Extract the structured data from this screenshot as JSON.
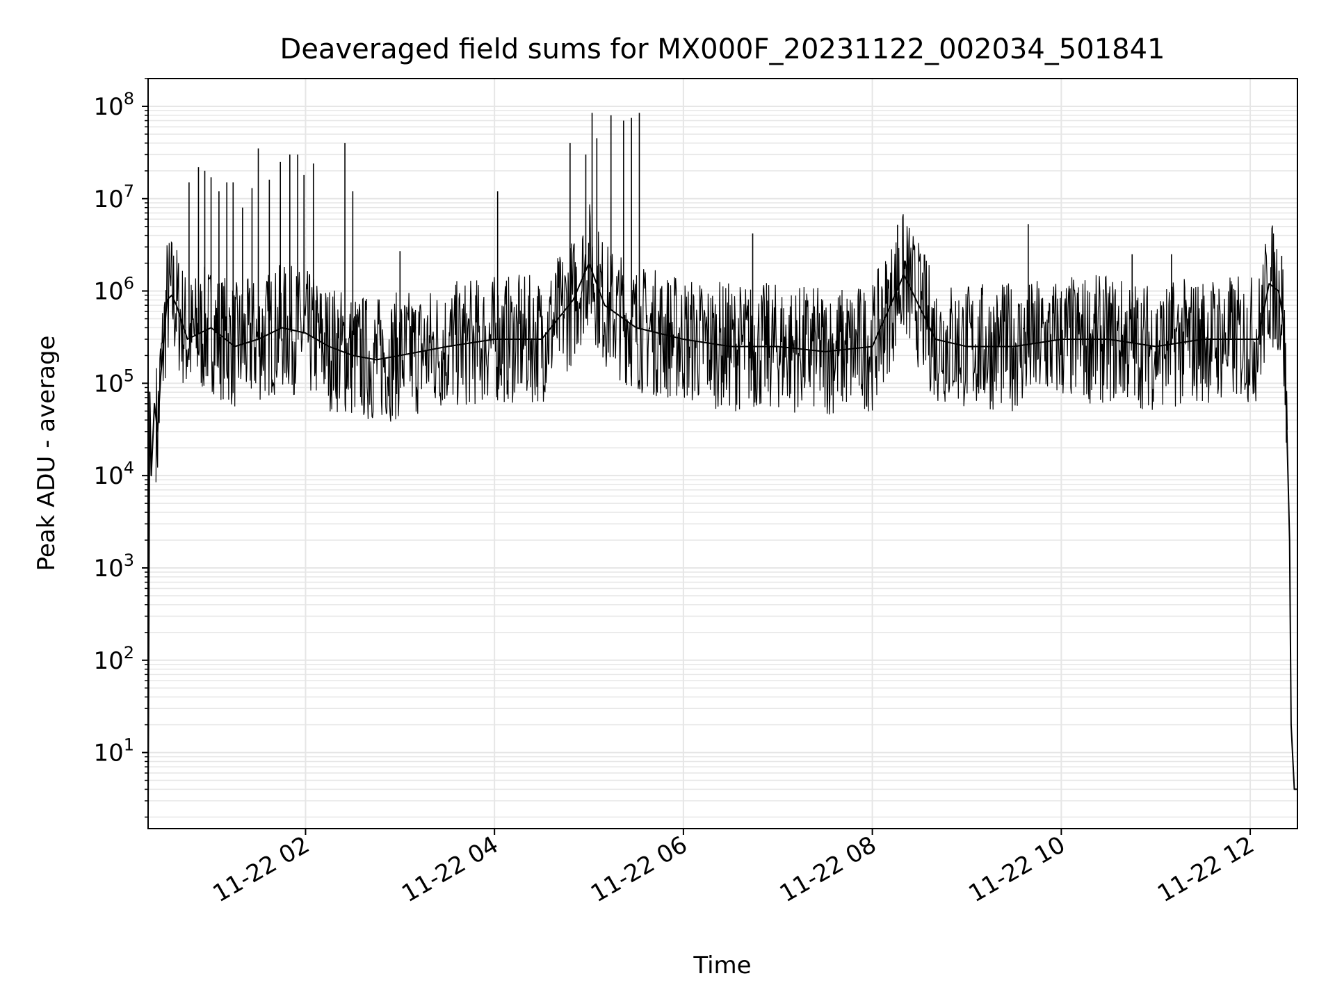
{
  "chart_data": {
    "type": "line",
    "title": "Deaveraged field sums for MX000F_20231122_002034_501841",
    "xlabel": "Time",
    "ylabel": "Peak ADU - average",
    "yscale": "log",
    "grid": true,
    "legend": "none",
    "line_color": "#000000",
    "grid_color": "#e6e6e6",
    "xlim": [
      "2023-11-22 00:20",
      "2023-11-22 12:30"
    ],
    "ylim": [
      1.5,
      200000000
    ],
    "x_ticks": [
      {
        "value": "2023-11-22 02:00",
        "label": "11-22 02"
      },
      {
        "value": "2023-11-22 04:00",
        "label": "11-22 04"
      },
      {
        "value": "2023-11-22 06:00",
        "label": "11-22 06"
      },
      {
        "value": "2023-11-22 08:00",
        "label": "11-22 08"
      },
      {
        "value": "2023-11-22 10:00",
        "label": "11-22 10"
      },
      {
        "value": "2023-11-22 12:00",
        "label": "11-22 12"
      }
    ],
    "y_ticks": [
      {
        "value": 10,
        "base": "10",
        "exp": "1"
      },
      {
        "value": 100,
        "base": "10",
        "exp": "2"
      },
      {
        "value": 1000,
        "base": "10",
        "exp": "3"
      },
      {
        "value": 10000,
        "base": "10",
        "exp": "4"
      },
      {
        "value": 100000,
        "base": "10",
        "exp": "5"
      },
      {
        "value": 1000000,
        "base": "10",
        "exp": "6"
      },
      {
        "value": 10000000,
        "base": "10",
        "exp": "7"
      },
      {
        "value": 100000000,
        "base": "10",
        "exp": "8"
      }
    ],
    "series": [
      {
        "x": [
          "2023-11-22 00:20",
          "2023-11-22 00:21",
          "2023-11-22 00:22",
          "2023-11-22 00:24",
          "2023-11-22 00:26",
          "2023-11-22 00:28",
          "2023-11-22 00:30",
          "2023-11-22 00:32",
          "2023-11-22 00:35",
          "2023-11-22 00:38",
          "2023-11-22 00:45",
          "2023-11-22 01:00",
          "2023-11-22 01:15",
          "2023-11-22 01:30",
          "2023-11-22 01:45",
          "2023-11-22 02:00",
          "2023-11-22 02:15",
          "2023-11-22 02:30",
          "2023-11-22 02:45",
          "2023-11-22 03:00",
          "2023-11-22 03:30",
          "2023-11-22 04:00",
          "2023-11-22 04:30",
          "2023-11-22 04:50",
          "2023-11-22 05:00",
          "2023-11-22 05:10",
          "2023-11-22 05:30",
          "2023-11-22 06:00",
          "2023-11-22 06:30",
          "2023-11-22 07:00",
          "2023-11-22 07:30",
          "2023-11-22 08:00",
          "2023-11-22 08:20",
          "2023-11-22 08:40",
          "2023-11-22 09:00",
          "2023-11-22 09:30",
          "2023-11-22 10:00",
          "2023-11-22 10:30",
          "2023-11-22 11:00",
          "2023-11-22 11:30",
          "2023-11-22 11:50",
          "2023-11-22 12:05",
          "2023-11-22 12:12",
          "2023-11-22 12:18",
          "2023-11-22 12:21",
          "2023-11-22 12:23",
          "2023-11-22 12:25",
          "2023-11-22 12:26",
          "2023-11-22 12:28",
          "2023-11-22 12:30"
        ],
        "y": [
          2,
          80000,
          10000,
          60000,
          30000,
          120000,
          300000,
          800000,
          900000,
          700000,
          300000,
          400000,
          250000,
          300000,
          400000,
          350000,
          250000,
          200000,
          180000,
          200000,
          250000,
          300000,
          300000,
          800000,
          2000000,
          700000,
          400000,
          300000,
          250000,
          250000,
          220000,
          250000,
          1500000,
          300000,
          250000,
          250000,
          300000,
          300000,
          250000,
          300000,
          300000,
          300000,
          1200000,
          1000000,
          500000,
          50000,
          2000,
          20,
          4,
          4
        ],
        "spikes": [
          {
            "x": "2023-11-22 00:46",
            "y": 15000000
          },
          {
            "x": "2023-11-22 00:52",
            "y": 22000000
          },
          {
            "x": "2023-11-22 00:56",
            "y": 20000000
          },
          {
            "x": "2023-11-22 01:00",
            "y": 17000000
          },
          {
            "x": "2023-11-22 01:05",
            "y": 12000000
          },
          {
            "x": "2023-11-22 01:10",
            "y": 15000000
          },
          {
            "x": "2023-11-22 01:14",
            "y": 15000000
          },
          {
            "x": "2023-11-22 01:20",
            "y": 8000000
          },
          {
            "x": "2023-11-22 01:26",
            "y": 13000000
          },
          {
            "x": "2023-11-22 01:30",
            "y": 35000000
          },
          {
            "x": "2023-11-22 01:37",
            "y": 16000000
          },
          {
            "x": "2023-11-22 01:44",
            "y": 25000000
          },
          {
            "x": "2023-11-22 01:50",
            "y": 30000000
          },
          {
            "x": "2023-11-22 01:55",
            "y": 30000000
          },
          {
            "x": "2023-11-22 01:59",
            "y": 18000000
          },
          {
            "x": "2023-11-22 02:05",
            "y": 24000000
          },
          {
            "x": "2023-11-22 02:25",
            "y": 40000000
          },
          {
            "x": "2023-11-22 02:30",
            "y": 12000000
          },
          {
            "x": "2023-11-22 03:00",
            "y": 2700000
          },
          {
            "x": "2023-11-22 04:02",
            "y": 12000000
          },
          {
            "x": "2023-11-22 04:48",
            "y": 40000000
          },
          {
            "x": "2023-11-22 04:58",
            "y": 30000000
          },
          {
            "x": "2023-11-22 05:02",
            "y": 85000000
          },
          {
            "x": "2023-11-22 05:05",
            "y": 45000000
          },
          {
            "x": "2023-11-22 05:14",
            "y": 80000000
          },
          {
            "x": "2023-11-22 05:22",
            "y": 70000000
          },
          {
            "x": "2023-11-22 05:27",
            "y": 75000000
          },
          {
            "x": "2023-11-22 05:32",
            "y": 85000000
          },
          {
            "x": "2023-11-22 06:44",
            "y": 4200000
          },
          {
            "x": "2023-11-22 08:16",
            "y": 5200000
          },
          {
            "x": "2023-11-22 09:39",
            "y": 5300000
          },
          {
            "x": "2023-11-22 10:45",
            "y": 2500000
          },
          {
            "x": "2023-11-22 11:10",
            "y": 2500000
          },
          {
            "x": "2023-11-22 12:20",
            "y": 2400000
          }
        ]
      }
    ]
  }
}
